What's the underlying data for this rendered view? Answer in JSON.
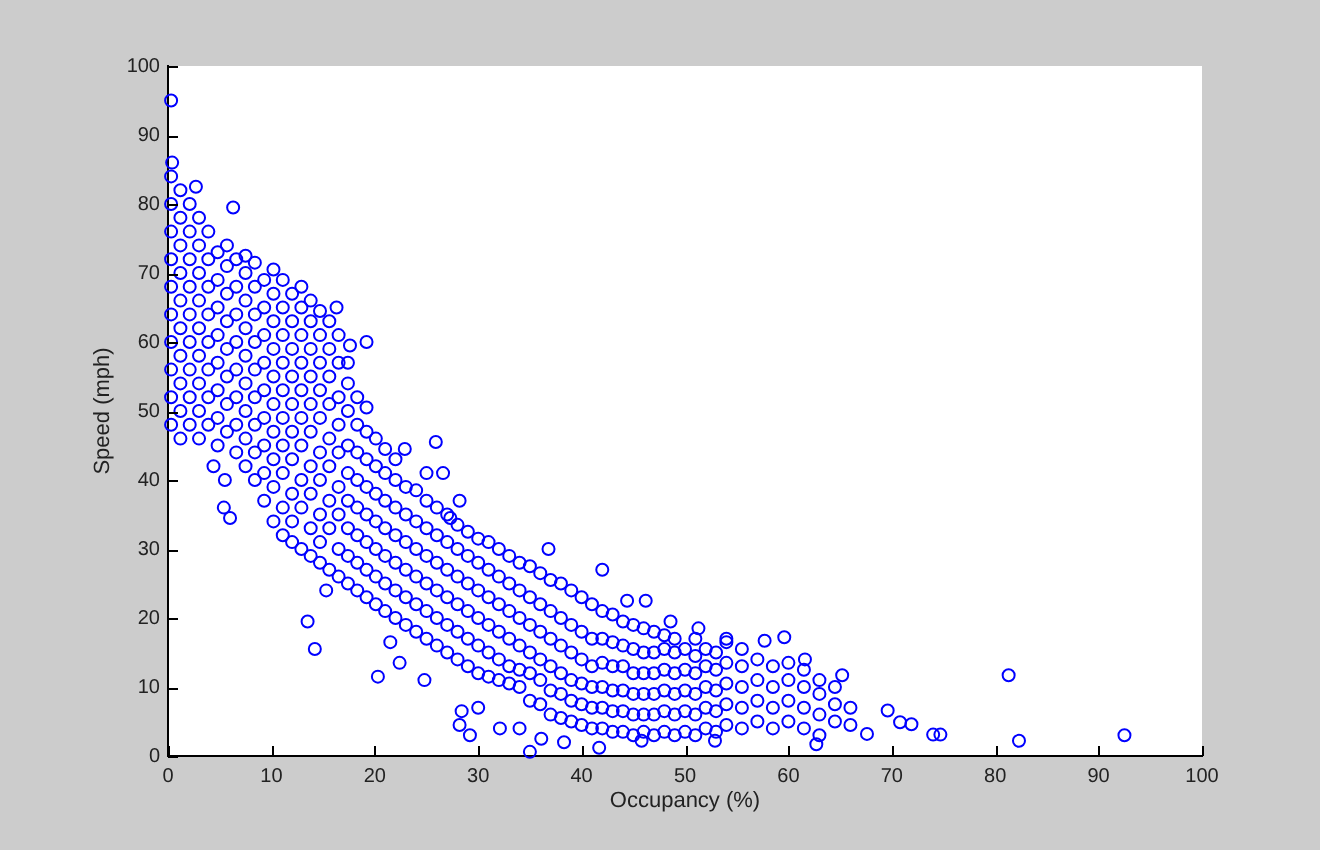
{
  "chart_data": {
    "type": "scatter",
    "xlabel": "Occupancy (%)",
    "ylabel": "Speed (mph)",
    "xlim": [
      0,
      100
    ],
    "ylim": [
      0,
      100
    ],
    "xticks": [
      0,
      10,
      20,
      30,
      40,
      50,
      60,
      70,
      80,
      90,
      100
    ],
    "yticks": [
      0,
      10,
      20,
      30,
      40,
      50,
      60,
      70,
      80,
      90,
      100
    ],
    "grid": false,
    "legend": false,
    "marker": "circle",
    "color": "#0000ff",
    "x": [
      0.3,
      0.3,
      0.3,
      0.3,
      0.3,
      0.3,
      0.3,
      0.3,
      0.3,
      0.3,
      1.2,
      1.2,
      1.2,
      1.2,
      1.2,
      1.2,
      1.2,
      1.2,
      1.2,
      1.2,
      2.1,
      2.1,
      2.1,
      2.1,
      2.1,
      2.1,
      2.1,
      2.1,
      2.1,
      3,
      3,
      3,
      3,
      3,
      3,
      3,
      3,
      3,
      3.9,
      3.9,
      3.9,
      3.9,
      3.9,
      3.9,
      3.9,
      3.9,
      4.8,
      4.8,
      4.8,
      4.8,
      4.8,
      4.8,
      4.8,
      4.8,
      5.7,
      5.7,
      5.7,
      5.7,
      5.7,
      5.7,
      5.7,
      5.7,
      6.6,
      6.6,
      6.6,
      6.6,
      6.6,
      6.6,
      6.6,
      6.6,
      7.5,
      7.5,
      7.5,
      7.5,
      7.5,
      7.5,
      7.5,
      7.5,
      7.5,
      8.4,
      8.4,
      8.4,
      8.4,
      8.4,
      8.4,
      8.4,
      8.4,
      8.4,
      9.3,
      9.3,
      9.3,
      9.3,
      9.3,
      9.3,
      9.3,
      9.3,
      9.3,
      10.2,
      10.2,
      10.2,
      10.2,
      10.2,
      10.2,
      10.2,
      10.2,
      10.2,
      10.2,
      11.1,
      11.1,
      11.1,
      11.1,
      11.1,
      11.1,
      11.1,
      11.1,
      11.1,
      11.1,
      12,
      12,
      12,
      12,
      12,
      12,
      12,
      12,
      12,
      12,
      12.9,
      12.9,
      12.9,
      12.9,
      12.9,
      12.9,
      12.9,
      12.9,
      12.9,
      12.9,
      13.8,
      13.8,
      13.8,
      13.8,
      13.8,
      13.8,
      13.8,
      13.8,
      13.8,
      13.8,
      14.7,
      14.7,
      14.7,
      14.7,
      14.7,
      14.7,
      14.7,
      14.7,
      14.7,
      14.7,
      15.6,
      15.6,
      15.6,
      15.6,
      15.6,
      15.6,
      15.6,
      15.6,
      15.6,
      16.5,
      16.5,
      16.5,
      16.5,
      16.5,
      16.5,
      16.5,
      16.5,
      16.5,
      17.4,
      17.4,
      17.4,
      17.4,
      17.4,
      17.4,
      17.4,
      17.4,
      17.4,
      18.3,
      18.3,
      18.3,
      18.3,
      18.3,
      18.3,
      18.3,
      18.3,
      19.2,
      19.2,
      19.2,
      19.2,
      19.2,
      19.2,
      19.2,
      19.2,
      20.1,
      20.1,
      20.1,
      20.1,
      20.1,
      20.1,
      20.1,
      21,
      21,
      21,
      21,
      21,
      21,
      21,
      22,
      22,
      22,
      22,
      22,
      22,
      22,
      23,
      23,
      23,
      23,
      23,
      23,
      24,
      24,
      24,
      24,
      24,
      24,
      25,
      25,
      25,
      25,
      25,
      25,
      26,
      26,
      26,
      26,
      26,
      26,
      27,
      27,
      27,
      27,
      27,
      27,
      28,
      28,
      28,
      28,
      28,
      28,
      29,
      29,
      29,
      29,
      29,
      29,
      30,
      30,
      30,
      30,
      30,
      30,
      31,
      31,
      31,
      31,
      31,
      31,
      32,
      32,
      32,
      32,
      32,
      32,
      33,
      33,
      33,
      33,
      33,
      33,
      34,
      34,
      34,
      34,
      34,
      34,
      35,
      35,
      35,
      35,
      35,
      35,
      36,
      36,
      36,
      36,
      36,
      36,
      37,
      37,
      37,
      37,
      37,
      37,
      38,
      38,
      38,
      38,
      38,
      38,
      39,
      39,
      39,
      39,
      39,
      39,
      40,
      40,
      40,
      40,
      40,
      40,
      41,
      41,
      41,
      41,
      41,
      41,
      42,
      42,
      42,
      42,
      42,
      42,
      43,
      43,
      43,
      43,
      43,
      43,
      44,
      44,
      44,
      44,
      44,
      44,
      45,
      45,
      45,
      45,
      45,
      45,
      46,
      46,
      46,
      46,
      46,
      46,
      47,
      47,
      47,
      47,
      47,
      47,
      48,
      48,
      48,
      48,
      48,
      48,
      49,
      49,
      49,
      49,
      49,
      49,
      50,
      50,
      50,
      50,
      50,
      51,
      51,
      51,
      51,
      51,
      51,
      52,
      52,
      52,
      52,
      52,
      53,
      53,
      53,
      53,
      53,
      54,
      54,
      54,
      54,
      54,
      55.5,
      55.5,
      55.5,
      55.5,
      55.5,
      57,
      57,
      57,
      57,
      58.5,
      58.5,
      58.5,
      58.5,
      60,
      60,
      60,
      60,
      61.5,
      61.5,
      61.5,
      61.5,
      63,
      63,
      63,
      63,
      64.5,
      64.5,
      64.5,
      66,
      66,
      0.3,
      0.4,
      2.7,
      6.3,
      16.3,
      17.6,
      19.2,
      4.4,
      5.5,
      5.4,
      6,
      13.5,
      14.2,
      15.3,
      20.3,
      21.5,
      22.4,
      24.8,
      22.9,
      25.9,
      25,
      26.6,
      28.2,
      27.3,
      28.4,
      28.2,
      29.2,
      30,
      32.1,
      34,
      36.1,
      35,
      38.3,
      41.7,
      45.8,
      52.9,
      62.7,
      42,
      36.8,
      44.4,
      46.2,
      48.6,
      51.3,
      54,
      57.7,
      59.6,
      61.6,
      65.2,
      69.6,
      70.8,
      71.9,
      67.6,
      74,
      74.7,
      81.3,
      82.3,
      92.5
    ],
    "values": [
      48,
      52,
      56,
      60,
      64,
      68,
      72,
      76,
      80,
      84,
      46,
      50,
      54,
      58,
      62,
      66,
      70,
      74,
      78,
      82,
      48,
      52,
      56,
      60,
      64,
      68,
      72,
      76,
      80,
      46,
      50,
      54,
      58,
      62,
      66,
      70,
      74,
      78,
      48,
      52,
      56,
      60,
      64,
      68,
      72,
      76,
      45,
      49,
      53,
      57,
      61,
      65,
      69,
      73,
      47,
      51,
      55,
      59,
      63,
      67,
      71,
      74,
      44,
      48,
      52,
      56,
      60,
      64,
      68,
      72,
      42,
      46,
      50,
      54,
      58,
      62,
      66,
      70,
      72.5,
      40,
      44,
      48,
      52,
      56,
      60,
      64,
      68,
      71.5,
      37,
      41,
      45,
      49,
      53,
      57,
      61,
      65,
      69,
      34,
      39,
      43,
      47,
      51,
      55,
      59,
      63,
      67,
      70.5,
      32,
      36,
      41,
      45,
      49,
      53,
      57,
      61,
      65,
      69,
      31,
      34,
      38,
      43,
      47,
      51,
      55,
      59,
      63,
      67,
      30,
      36,
      40,
      45,
      49,
      53,
      57,
      61,
      65,
      68,
      29,
      33,
      38,
      42,
      47,
      51,
      55,
      59,
      63,
      66,
      28,
      31,
      35,
      40,
      44,
      49,
      53,
      57,
      61,
      64.5,
      27,
      33,
      37,
      42,
      46,
      51,
      55,
      59,
      63,
      26,
      30,
      35,
      39,
      44,
      48,
      52,
      57,
      61,
      25,
      29,
      33,
      37,
      41,
      45,
      50,
      54,
      57,
      24,
      28,
      32,
      36,
      40,
      44,
      48,
      52,
      23,
      27,
      31,
      35,
      39,
      43,
      47,
      50.5,
      22,
      26,
      30,
      34,
      38,
      42,
      46,
      21,
      25,
      29,
      33,
      37,
      41,
      44.5,
      20,
      24,
      28,
      32,
      36,
      40,
      43,
      19,
      23,
      27,
      31,
      35,
      39,
      18,
      22,
      26,
      30,
      34,
      38.5,
      17,
      21,
      25,
      29,
      33,
      37,
      16,
      20,
      24,
      28,
      32,
      36,
      15,
      19,
      23,
      27,
      31,
      35,
      14,
      18,
      22,
      26,
      30,
      33.5,
      13,
      17,
      21,
      25,
      29,
      32.5,
      12,
      16,
      20,
      24,
      28,
      31.5,
      11.5,
      15,
      19,
      23,
      27,
      31,
      11,
      14,
      18,
      22,
      26,
      30,
      10.5,
      13,
      17,
      21,
      25,
      29,
      10,
      12.5,
      16,
      20,
      24,
      28,
      8,
      12,
      15,
      19,
      23,
      27.5,
      7.5,
      11,
      14,
      18,
      22,
      26.5,
      6,
      9.5,
      13,
      17,
      21,
      25.5,
      5.5,
      9,
      12,
      16,
      20,
      25,
      5,
      8,
      11,
      15,
      19,
      24,
      4.5,
      7.5,
      10.5,
      14,
      18,
      23,
      4,
      7,
      10,
      13,
      17,
      22,
      4,
      7,
      10,
      13.5,
      17,
      21,
      3.5,
      6.5,
      9.5,
      13,
      16.5,
      20.5,
      3.5,
      6.5,
      9.5,
      13,
      16,
      19.5,
      3,
      6,
      9,
      12,
      15.5,
      19,
      3.5,
      6,
      9,
      12,
      15,
      18.5,
      3,
      6,
      9,
      12,
      15,
      18,
      3.5,
      6.5,
      9.5,
      12.5,
      15.5,
      17.5,
      3,
      6,
      9,
      12,
      15,
      17,
      3.5,
      6.5,
      9.5,
      12.5,
      15.5,
      3,
      6,
      9,
      12,
      14.5,
      17,
      4,
      7,
      10,
      13,
      15.5,
      3.5,
      6.5,
      9.5,
      12.5,
      15,
      4.5,
      7.5,
      10.5,
      13.5,
      16.5,
      4,
      7,
      10,
      13,
      15.5,
      5,
      8,
      11,
      14,
      4,
      7,
      10,
      13,
      5,
      8,
      11,
      13.5,
      4,
      7,
      10,
      12.5,
      3,
      6,
      9,
      11,
      5,
      7.5,
      10,
      4.5,
      7,
      95,
      86,
      82.5,
      79.5,
      65,
      59.5,
      60,
      42,
      40,
      36,
      34.5,
      19.5,
      15.5,
      24,
      11.5,
      16.5,
      13.5,
      11,
      44.5,
      45.5,
      41,
      41,
      37,
      34.5,
      6.5,
      4.5,
      3,
      7,
      4,
      4,
      2.5,
      0.6,
      2,
      1.2,
      2.2,
      2.2,
      1.7,
      27,
      30,
      22.5,
      22.5,
      19.5,
      18.5,
      17,
      16.7,
      17.2,
      14,
      11.7,
      6.6,
      4.9,
      4.6,
      3.2,
      3.1,
      3.1,
      11.7,
      2.2,
      3
    ]
  }
}
